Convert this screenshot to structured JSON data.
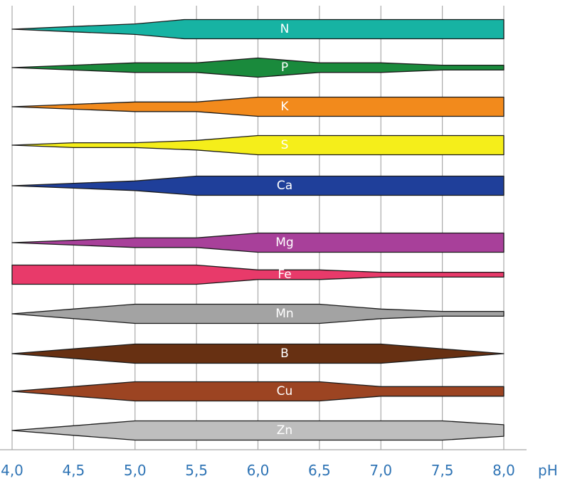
{
  "chart_data": {
    "type": "area",
    "title": "",
    "xlabel": "pH",
    "ylabel": "",
    "xlim": [
      4.0,
      8.0
    ],
    "x_ticks": [
      4.0,
      4.5,
      5.0,
      5.5,
      6.0,
      6.5,
      7.0,
      7.5,
      8.0
    ],
    "x_tick_labels": [
      "4,0",
      "4,5",
      "5,0",
      "5,5",
      "6,0",
      "6,5",
      "7,0",
      "7,5",
      "8,0"
    ],
    "grid": true,
    "legend": "none",
    "width_unit": "relative availability (0-1, 1 = maximum band width)",
    "series": [
      {
        "name": "N",
        "color": "#17b3a3",
        "x": [
          4.0,
          4.5,
          5.0,
          5.4,
          8.0
        ],
        "width": [
          0.0,
          0.28,
          0.55,
          1.0,
          1.0
        ]
      },
      {
        "name": "P",
        "color": "#1a8a3c",
        "x": [
          4.0,
          4.5,
          5.0,
          5.5,
          6.0,
          6.5,
          7.0,
          7.5,
          8.0
        ],
        "width": [
          0.0,
          0.25,
          0.5,
          0.5,
          1.0,
          0.5,
          0.5,
          0.25,
          0.25
        ]
      },
      {
        "name": "K",
        "color": "#f28a1c",
        "x": [
          4.0,
          4.5,
          5.0,
          5.5,
          6.0,
          8.0
        ],
        "width": [
          0.0,
          0.25,
          0.5,
          0.5,
          1.0,
          1.0
        ]
      },
      {
        "name": "S",
        "color": "#f5ee1a",
        "x": [
          4.0,
          4.5,
          5.0,
          5.5,
          6.0,
          8.0
        ],
        "width": [
          0.0,
          0.25,
          0.25,
          0.5,
          1.0,
          1.0
        ]
      },
      {
        "name": "Ca",
        "color": "#1f3f9a",
        "x": [
          4.0,
          4.5,
          5.0,
          5.5,
          8.0
        ],
        "width": [
          0.0,
          0.25,
          0.5,
          1.0,
          1.0
        ]
      },
      {
        "name": "Mg",
        "color": "#a8409a",
        "x": [
          4.0,
          4.5,
          5.0,
          5.5,
          6.0,
          8.0
        ],
        "width": [
          0.0,
          0.25,
          0.5,
          0.5,
          1.0,
          1.0
        ]
      },
      {
        "name": "Fe",
        "color": "#e83a6a",
        "x": [
          4.0,
          5.0,
          5.5,
          6.0,
          6.5,
          7.0,
          7.5,
          8.0
        ],
        "width": [
          1.0,
          1.0,
          1.0,
          0.5,
          0.5,
          0.25,
          0.25,
          0.25
        ]
      },
      {
        "name": "Mn",
        "color": "#a3a3a3",
        "x": [
          4.0,
          5.0,
          6.5,
          7.0,
          7.5,
          8.0
        ],
        "width": [
          0.0,
          1.0,
          1.0,
          0.5,
          0.25,
          0.25
        ]
      },
      {
        "name": "B",
        "color": "#673012",
        "x": [
          4.0,
          5.0,
          6.5,
          7.0,
          8.0
        ],
        "width": [
          0.0,
          1.0,
          1.0,
          1.0,
          0.0
        ]
      },
      {
        "name": "Cu",
        "color": "#9c4422",
        "x": [
          4.0,
          5.0,
          6.5,
          7.0,
          7.5,
          8.0
        ],
        "width": [
          0.0,
          1.0,
          1.0,
          0.5,
          0.5,
          0.5
        ]
      },
      {
        "name": "Zn",
        "color": "#bebebe",
        "x": [
          4.0,
          4.5,
          5.0,
          7.5,
          8.0
        ],
        "width": [
          0.0,
          0.5,
          1.0,
          1.0,
          0.6
        ]
      }
    ]
  }
}
